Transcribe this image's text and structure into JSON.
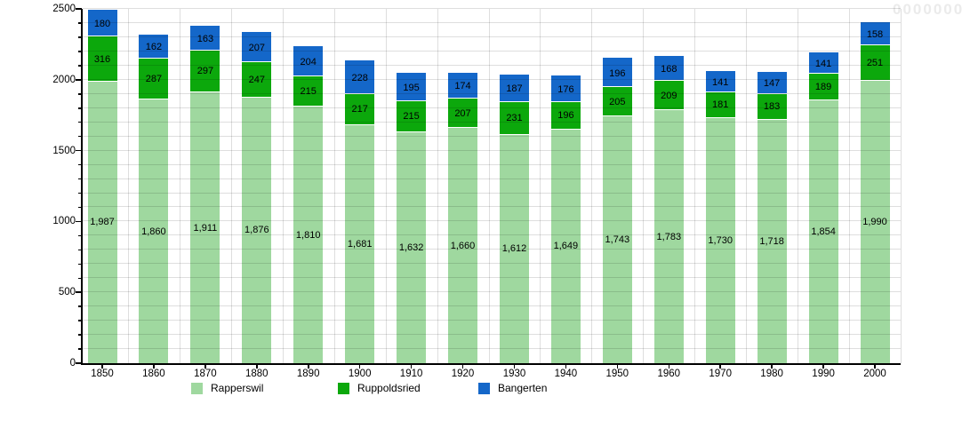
{
  "watermark": "0000000",
  "chart_data": {
    "type": "bar",
    "stacked": true,
    "title": "",
    "xlabel": "",
    "ylabel": "",
    "categories": [
      "1850",
      "1860",
      "1870",
      "1880",
      "1890",
      "1900",
      "1910",
      "1920",
      "1930",
      "1940",
      "1950",
      "1960",
      "1970",
      "1980",
      "1990",
      "2000"
    ],
    "series": [
      {
        "name": "Rapperswil",
        "color": "#9FD89F",
        "values": [
          1987,
          1860,
          1911,
          1876,
          1810,
          1681,
          1632,
          1660,
          1612,
          1649,
          1743,
          1783,
          1730,
          1718,
          1854,
          1990
        ],
        "labels": [
          "1,987",
          "1,860",
          "1,911",
          "1,876",
          "1,810",
          "1,681",
          "1,632",
          "1,660",
          "1,612",
          "1,649",
          "1,743",
          "1,783",
          "1,730",
          "1,718",
          "1,854",
          "1,990"
        ]
      },
      {
        "name": "Ruppoldsried",
        "color": "#0CA80C",
        "values": [
          316,
          287,
          297,
          247,
          215,
          217,
          215,
          207,
          231,
          196,
          205,
          209,
          181,
          183,
          189,
          251
        ],
        "labels": [
          "316",
          "287",
          "297",
          "247",
          "215",
          "217",
          "215",
          "207",
          "231",
          "196",
          "205",
          "209",
          "181",
          "183",
          "189",
          "251"
        ]
      },
      {
        "name": "Bangerten",
        "color": "#1467C9",
        "values": [
          180,
          162,
          163,
          207,
          204,
          228,
          195,
          174,
          187,
          176,
          196,
          168,
          141,
          147,
          141,
          158
        ],
        "labels": [
          "180",
          "162",
          "163",
          "207",
          "204",
          "228",
          "195",
          "174",
          "187",
          "176",
          "196",
          "168",
          "141",
          "147",
          "141",
          "158"
        ]
      }
    ],
    "ylim": [
      0,
      2500
    ],
    "yticks": [
      0,
      500,
      1000,
      1500,
      2000,
      2500
    ],
    "minor_grid_step": 100,
    "grid": "horizontal minor lines every 100; vertical lines at category boundaries",
    "legend_position": "bottom"
  }
}
